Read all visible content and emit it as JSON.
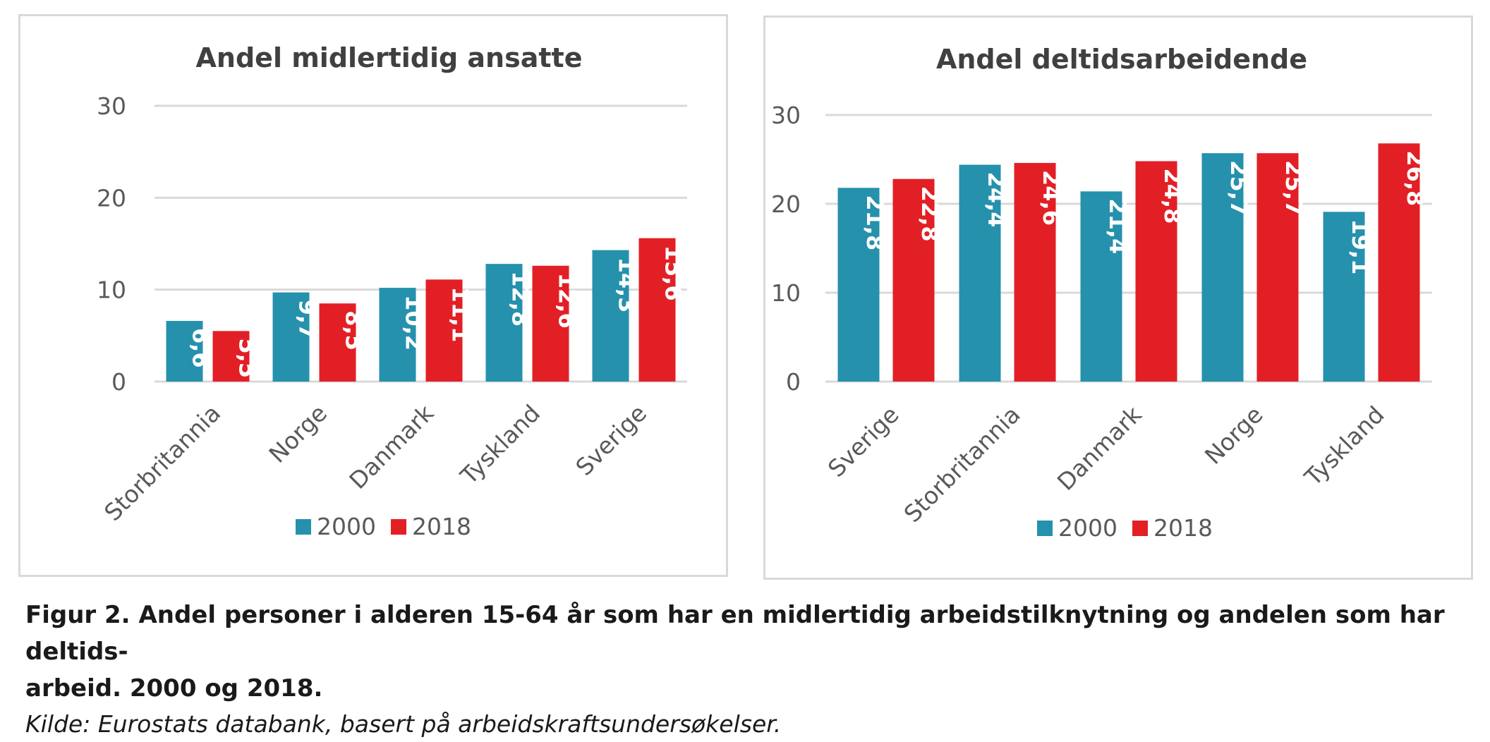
{
  "colors": {
    "series_2000": "#2591ad",
    "series_2018": "#e31f26",
    "grid": "#d9d9d9",
    "text": "#595959",
    "title": "#404040",
    "border": "#d9d9d9"
  },
  "chart_data": [
    {
      "type": "bar",
      "title": "Andel midlertidig ansatte",
      "categories": [
        "Storbritannia",
        "Norge",
        "Danmark",
        "Tyskland",
        "Sverige"
      ],
      "series": [
        {
          "name": "2000",
          "values": [
            6.6,
            9.7,
            10.2,
            12.8,
            14.3
          ],
          "labels": [
            "6,6",
            "9,7",
            "10,2",
            "12,8",
            "14,3"
          ]
        },
        {
          "name": "2018",
          "values": [
            5.5,
            8.5,
            11.1,
            12.6,
            15.6
          ],
          "labels": [
            "5,5",
            "8,5",
            "11,1",
            "12,6",
            "15,6"
          ]
        }
      ],
      "ylim": [
        0,
        30
      ],
      "yticks": [
        "0",
        "10",
        "20",
        "30"
      ],
      "grid": true,
      "legend": "bottom"
    },
    {
      "type": "bar",
      "title": "Andel deltidsarbeidende",
      "categories": [
        "Sverige",
        "Storbritannia",
        "Danmark",
        "Norge",
        "Tyskland"
      ],
      "series": [
        {
          "name": "2000",
          "values": [
            21.8,
            24.4,
            21.4,
            25.7,
            19.1
          ],
          "labels": [
            "21,8",
            "24,4",
            "21,4",
            "25,7",
            "19,1"
          ]
        },
        {
          "name": "2018",
          "values": [
            22.8,
            24.6,
            24.8,
            25.7,
            26.8
          ],
          "labels": [
            "22,8",
            "24,6",
            "24,8",
            "25,7",
            "26,8"
          ]
        }
      ],
      "ylim": [
        0,
        30
      ],
      "yticks": [
        "0",
        "10",
        "20",
        "30"
      ],
      "grid": true,
      "legend": "bottom"
    }
  ],
  "caption": {
    "title": "Figur 2. Andel personer i alderen 15-64 år som har en midlertidig arbeidstilknytning og andelen som har deltids-arbeid. 2000 og 2018.",
    "title_line1": "Figur 2. Andel personer i alderen 15-64 år som har en midlertidig arbeidstilknytning og andelen som har deltids-",
    "title_line2": "arbeid. 2000 og 2018.",
    "source": "Kilde: Eurostats databank, basert på arbeidskraftsundersøkelser."
  }
}
